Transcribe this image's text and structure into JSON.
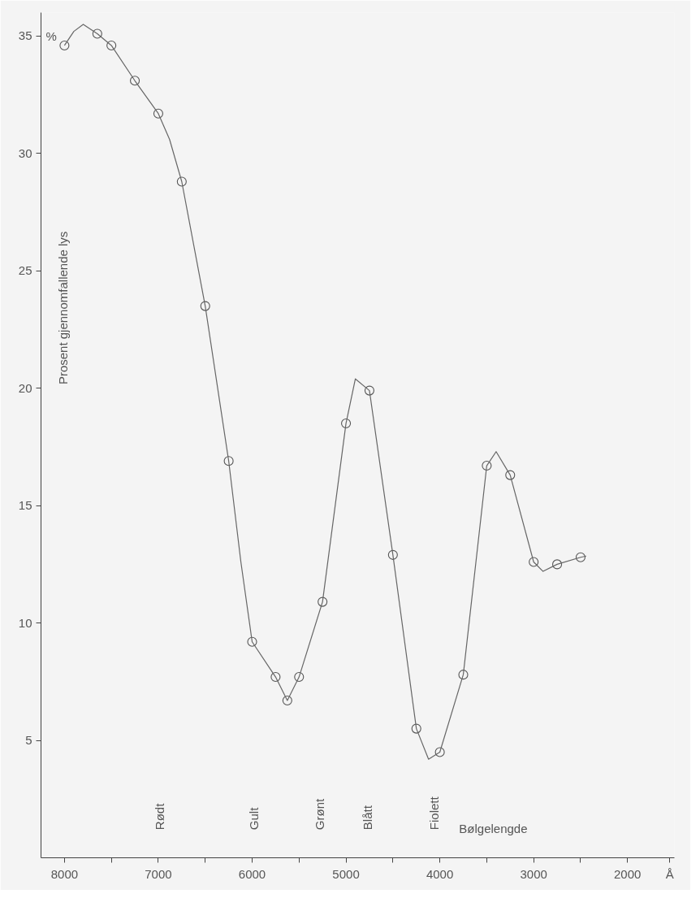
{
  "chart_data": {
    "type": "line",
    "xlabel": "Bølgelengde",
    "ylabel": "Prosent gjennomfallende lys",
    "series": [
      {
        "type": "scatter",
        "marker": "circle",
        "color": "#555555",
        "x": [
          8000,
          7650,
          7500,
          7250,
          7000,
          6750,
          6500,
          6250,
          6000,
          5750,
          5625,
          5500,
          5250,
          5000,
          4750,
          4500,
          4250,
          4000,
          3750,
          3500,
          3250,
          3000,
          2750,
          2500
        ],
        "values": [
          34.6,
          35.1,
          34.6,
          33.1,
          31.7,
          28.8,
          23.5,
          16.9,
          9.2,
          7.7,
          6.7,
          7.7,
          10.9,
          18.5,
          19.9,
          12.9,
          5.5,
          4.5,
          7.8,
          16.7,
          16.3,
          12.6,
          12.5,
          12.8
        ]
      },
      {
        "line_style": "solid",
        "color": "#666666",
        "x": [
          8000,
          7900,
          7800,
          7650,
          7500,
          7250,
          7000,
          6880,
          6750,
          6500,
          6250,
          6120,
          6000,
          5750,
          5625,
          5500,
          5250,
          5000,
          4900,
          4750,
          4500,
          4250,
          4120,
          4000,
          3750,
          3500,
          3400,
          3250,
          3000,
          2900,
          2750,
          2500,
          2440
        ],
        "values": [
          34.6,
          35.2,
          35.5,
          35.1,
          34.6,
          33.1,
          31.7,
          30.6,
          28.8,
          23.5,
          16.9,
          12.6,
          9.2,
          7.7,
          6.7,
          7.7,
          10.9,
          18.5,
          20.4,
          19.9,
          12.9,
          5.5,
          4.2,
          4.5,
          7.8,
          16.7,
          17.3,
          16.3,
          12.6,
          12.2,
          12.5,
          12.8,
          12.85
        ]
      }
    ],
    "xlim": [
      8250,
      1500
    ],
    "ylim": [
      0,
      36
    ],
    "xticks": [
      8000,
      {
        "value": 7500,
        "label": null
      },
      7000,
      {
        "value": 6500,
        "label": null
      },
      6000,
      {
        "value": 5500,
        "label": null
      },
      5000,
      {
        "value": 4500,
        "label": null
      },
      4000,
      {
        "value": 3500,
        "label": null
      },
      3000,
      {
        "value": 2500,
        "label": null
      },
      2000,
      {
        "value": 1550,
        "label": "Å"
      }
    ],
    "yticks": [
      5,
      10,
      15,
      20,
      25,
      30,
      35
    ],
    "grid": false,
    "annotations": [
      "%",
      "Rødt",
      "Gult",
      "Grønt",
      "Blått",
      "Fiolett"
    ]
  }
}
